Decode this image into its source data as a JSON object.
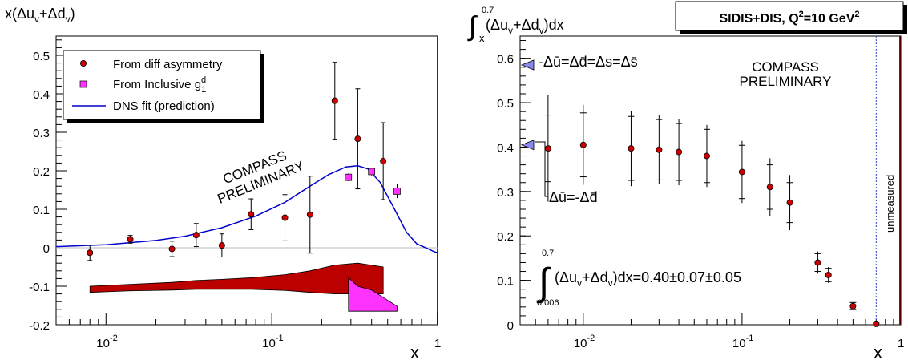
{
  "left": {
    "ylabel": "x(Δu_v+Δd_v)",
    "ylabel_main": "x(Δu",
    "ylabel_sub1": "v",
    "ylabel_mid": "+Δd",
    "ylabel_sub2": "v",
    "ylabel_end": ")",
    "xlabel": "x",
    "yticks": [
      "-0.2",
      "-0.1",
      "0",
      "0.1",
      "0.2",
      "0.3",
      "0.4",
      "0.5"
    ],
    "xticks": [
      {
        "base": "10",
        "exp": "-2",
        "v": 0.01
      },
      {
        "base": "10",
        "exp": "-1",
        "v": 0.1
      },
      {
        "base": "1",
        "exp": "",
        "v": 1
      }
    ],
    "legend": {
      "item1": "From diff asymmetry",
      "item2_main": "From Inclusive g",
      "item2_sup": "d",
      "item2_sub": "1",
      "item3": "DNS fit (prediction)"
    },
    "watermark_line1": "COMPASS",
    "watermark_line2": "PRELIMINARY"
  },
  "right": {
    "ylabel_int_top": "0.7",
    "ylabel_int_bottom": "x",
    "ylabel_body": "(Δu",
    "ylabel_sub1": "v",
    "ylabel_mid": "+Δd",
    "ylabel_sub2": "v",
    "ylabel_end": ")dx",
    "title_box_main": "SIDIS+DIS, Q",
    "title_box_sup": "2",
    "title_box_end": "=10 GeV",
    "title_box_sup2": "2",
    "xlabel": "x",
    "yticks": [
      "0",
      "0.1",
      "0.2",
      "0.3",
      "0.4",
      "0.5",
      "0.6"
    ],
    "xticks": [
      {
        "base": "10",
        "exp": "-2",
        "v": 0.01
      },
      {
        "base": "10",
        "exp": "-1",
        "v": 0.1
      },
      {
        "base": "1",
        "exp": "",
        "v": 1
      }
    ],
    "annot_top": "-Δū=Δd̄=Δs=Δs̄",
    "annot_mid": "Δū=-Δd̄",
    "watermark_line1": "COMPASS",
    "watermark_line2": "PRELIMINARY",
    "unmeasured": "unmeasured",
    "integral_top": "0.7",
    "integral_bottom": "0.006",
    "integral_body": "(Δu",
    "integral_sub1": "v",
    "integral_mid": "+Δd",
    "integral_sub2": "v",
    "integral_end": ")dx=0.40±0.07±0.05"
  },
  "colors": {
    "marker": "#cc0000",
    "inclusive": "#ff33ff",
    "fit": "#0000cc",
    "band": "#bb0000",
    "arrow": "#8888ee"
  },
  "chart_data": [
    {
      "type": "scatter",
      "xscale": "log",
      "xlim": [
        0.005,
        1
      ],
      "ylim": [
        -0.2,
        0.55
      ],
      "xlabel": "x",
      "ylabel": "x(Δu_v+Δd_v)",
      "legend_position": "top-left",
      "series": [
        {
          "name": "From diff asymmetry",
          "x": [
            0.008,
            0.014,
            0.025,
            0.035,
            0.05,
            0.075,
            0.12,
            0.17,
            0.24,
            0.33,
            0.47
          ],
          "y": [
            -0.013,
            0.022,
            -0.003,
            0.033,
            0.006,
            0.087,
            0.078,
            0.086,
            0.382,
            0.283,
            0.225
          ],
          "err_stat": [
            0.02,
            0.01,
            0.02,
            0.03,
            0.03,
            0.04,
            0.06,
            0.1,
            0.1,
            0.13,
            0.1
          ],
          "err_syst": [
            0.012,
            0.015,
            0.015,
            0.02,
            0.025,
            0.03,
            0.045,
            0.07,
            0.08,
            0.09,
            0.07
          ]
        },
        {
          "name": "From Inclusive g_1^d",
          "x": [
            0.29,
            0.4,
            0.57
          ],
          "y": [
            0.183,
            0.198,
            0.147
          ],
          "err": [
            0.01,
            0.01,
            0.018
          ]
        },
        {
          "name": "DNS fit (prediction)",
          "type": "line",
          "x": [
            0.005,
            0.01,
            0.02,
            0.03,
            0.05,
            0.08,
            0.12,
            0.17,
            0.22,
            0.28,
            0.33,
            0.38,
            0.45,
            0.55,
            0.65,
            0.75,
            0.85,
            0.95,
            1.0
          ],
          "y": [
            0.003,
            0.008,
            0.019,
            0.03,
            0.052,
            0.082,
            0.118,
            0.16,
            0.19,
            0.21,
            0.213,
            0.205,
            0.17,
            0.1,
            0.04,
            0.01,
            0.0,
            -0.01,
            -0.013
          ]
        },
        {
          "name": "syst band diff asymmetry",
          "type": "area",
          "upper_x": [
            0.008,
            0.014,
            0.025,
            0.035,
            0.05,
            0.075,
            0.12,
            0.17,
            0.24,
            0.33,
            0.47
          ],
          "upper_y": [
            -0.1,
            -0.095,
            -0.09,
            -0.085,
            -0.082,
            -0.078,
            -0.07,
            -0.06,
            -0.045,
            -0.04,
            -0.05
          ],
          "lower_y": [
            -0.116,
            -0.112,
            -0.11,
            -0.108,
            -0.108,
            -0.108,
            -0.111,
            -0.116,
            -0.12,
            -0.12,
            -0.12
          ]
        },
        {
          "name": "syst band inclusive",
          "type": "area",
          "upper_x": [
            0.29,
            0.33,
            0.4,
            0.57
          ],
          "upper_y": [
            -0.078,
            -0.1,
            -0.11,
            -0.152
          ],
          "lower_y": [
            -0.165,
            -0.165,
            -0.165,
            -0.165
          ]
        }
      ]
    },
    {
      "type": "scatter",
      "xscale": "log",
      "xlim": [
        0.004,
        1
      ],
      "ylim": [
        0,
        0.65
      ],
      "xlabel": "x",
      "ylabel": "∫_x^0.7 (Δu_v+Δd_v)dx",
      "title": "SIDIS+DIS, Q²=10 GeV²",
      "series": [
        {
          "name": "integral",
          "x": [
            0.006,
            0.01,
            0.02,
            0.03,
            0.04,
            0.06,
            0.1,
            0.15,
            0.2,
            0.3,
            0.35,
            0.5,
            0.7
          ],
          "y": [
            0.397,
            0.405,
            0.397,
            0.394,
            0.389,
            0.38,
            0.344,
            0.31,
            0.275,
            0.14,
            0.112,
            0.042,
            0.002
          ],
          "err_stat": [
            0.075,
            0.072,
            0.072,
            0.068,
            0.064,
            0.06,
            0.06,
            0.05,
            0.045,
            0.02,
            0.015,
            0.008,
            0.002
          ],
          "err_syst": [
            0.12,
            0.09,
            0.085,
            0.078,
            0.075,
            0.07,
            0.07,
            0.065,
            0.062,
            0.025,
            0.018,
            0.008,
            0.002
          ]
        }
      ],
      "markers": [
        {
          "label": "-Δū=Δd̄=Δs=Δs̄",
          "y": 0.585
        },
        {
          "label": "Δū=-Δd̄",
          "y": 0.405
        }
      ],
      "vertical_line": {
        "x": 0.7,
        "label": "unmeasured"
      }
    }
  ]
}
